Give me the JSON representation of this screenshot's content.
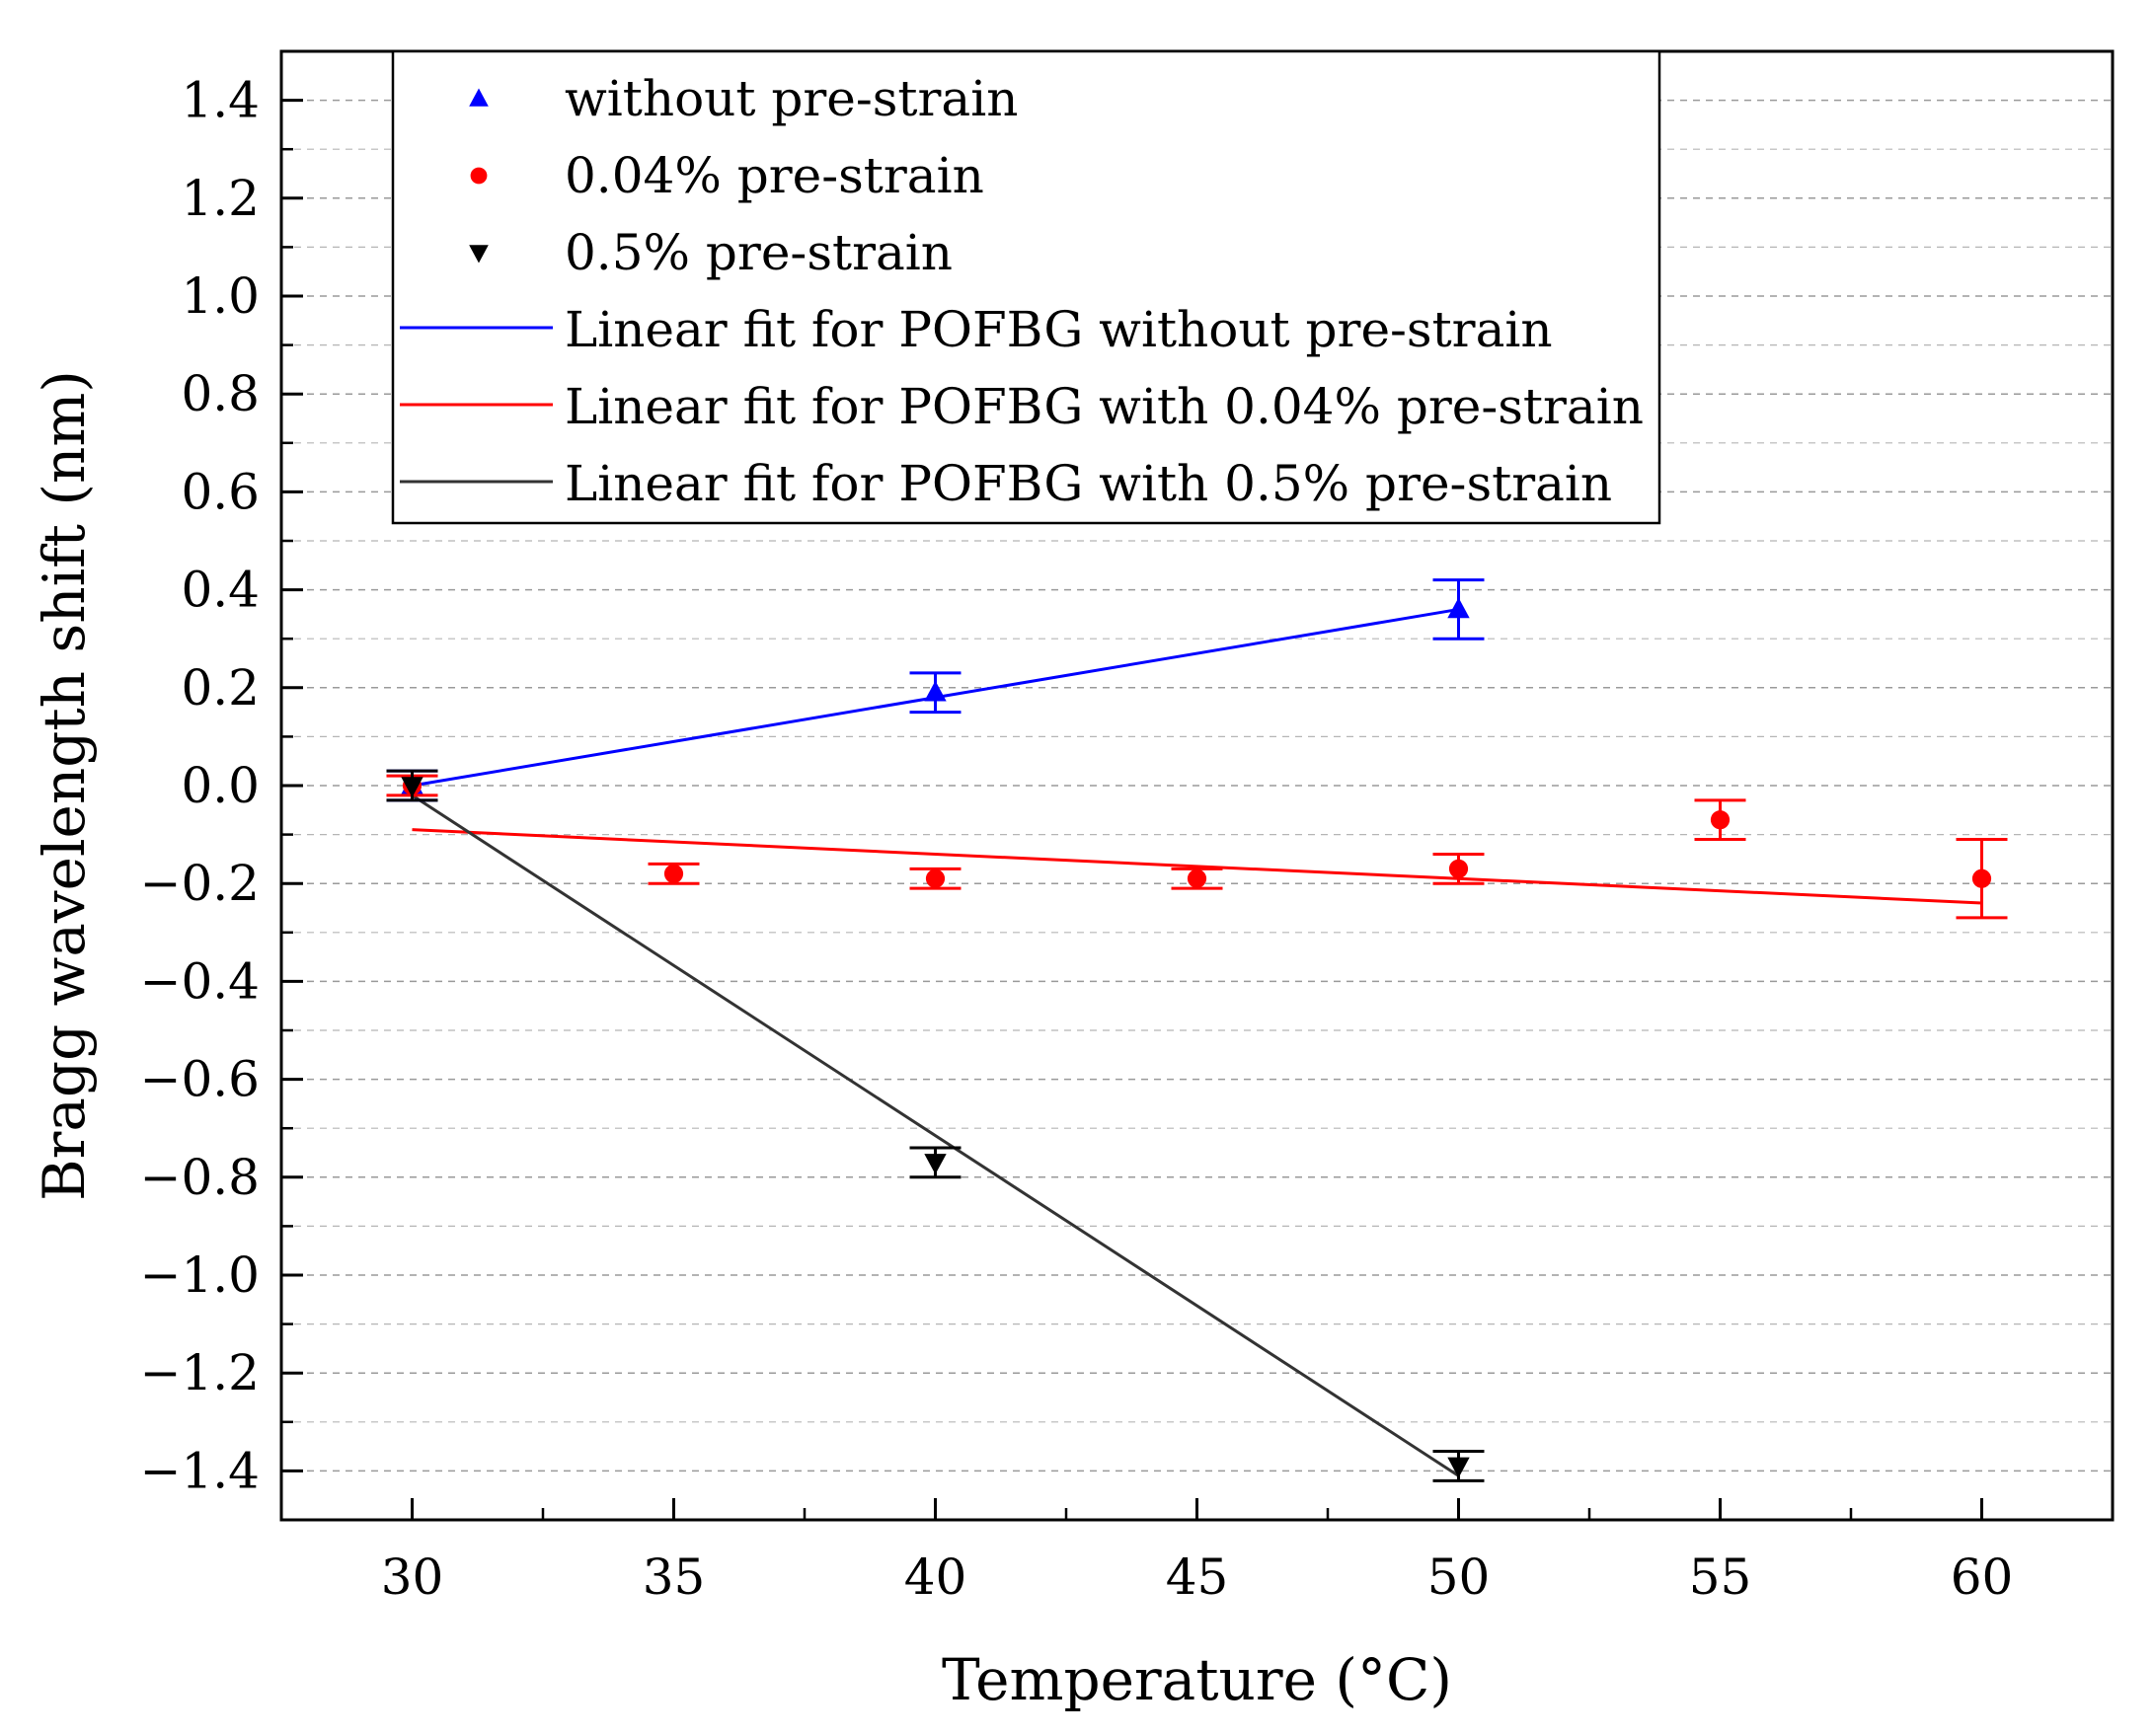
{
  "chart_data": {
    "type": "scatter",
    "xlabel": "Temperature (°C)",
    "ylabel": "Bragg wavelength shift (nm)",
    "xlim": [
      27.5,
      62.5
    ],
    "ylim": [
      -1.5,
      1.5
    ],
    "xticks": [
      30,
      35,
      40,
      45,
      50,
      55,
      60
    ],
    "xtick_labels": [
      "30",
      "35",
      "40",
      "45",
      "50",
      "55",
      "60"
    ],
    "yticks": [
      -1.4,
      -1.2,
      -1.0,
      -0.8,
      -0.6,
      -0.4,
      -0.2,
      0.0,
      0.2,
      0.4,
      0.6,
      0.8,
      1.0,
      1.2,
      1.4
    ],
    "ytick_labels": [
      "−1.4",
      "−1.2",
      "−1.0",
      "−0.8",
      "−0.6",
      "−0.4",
      "−0.2",
      "0.0",
      "0.2",
      "0.4",
      "0.6",
      "0.8",
      "1.0",
      "1.2",
      "1.4"
    ],
    "grid": "horizontal dashed",
    "legend_position": "top-left",
    "series": [
      {
        "name": "without pre-strain",
        "marker": "triangle-up",
        "color": "#0000ff",
        "x": [
          30,
          40,
          50
        ],
        "y": [
          0.0,
          0.19,
          0.36
        ],
        "err": [
          0.03,
          0.04,
          0.06
        ]
      },
      {
        "name": "0.04% pre-strain",
        "marker": "circle",
        "color": "#ff0000",
        "x": [
          30,
          35,
          40,
          45,
          50,
          55,
          60
        ],
        "y": [
          0.0,
          -0.18,
          -0.19,
          -0.19,
          -0.17,
          -0.07,
          -0.19
        ],
        "err": [
          0.02,
          0.02,
          0.02,
          0.02,
          0.03,
          0.04,
          0.08
        ]
      },
      {
        "name": "0.5% pre-strain",
        "marker": "triangle-down",
        "color": "#000000",
        "x": [
          30,
          40,
          50
        ],
        "y": [
          0.0,
          -0.77,
          -1.39
        ],
        "err": [
          0.03,
          0.03,
          0.03
        ]
      }
    ],
    "fits": [
      {
        "name": "Linear fit for POFBG without pre-strain",
        "color": "#0000ff",
        "x": [
          30,
          50
        ],
        "y": [
          0.0,
          0.36
        ]
      },
      {
        "name": "Linear fit for POFBG with 0.04% pre-strain",
        "color": "#ff0000",
        "x": [
          30,
          60
        ],
        "y": [
          -0.09,
          -0.24
        ]
      },
      {
        "name": "Linear fit for POFBG with 0.5% pre-strain",
        "color": "#333333",
        "x": [
          30,
          50
        ],
        "y": [
          -0.02,
          -1.41
        ]
      }
    ]
  }
}
